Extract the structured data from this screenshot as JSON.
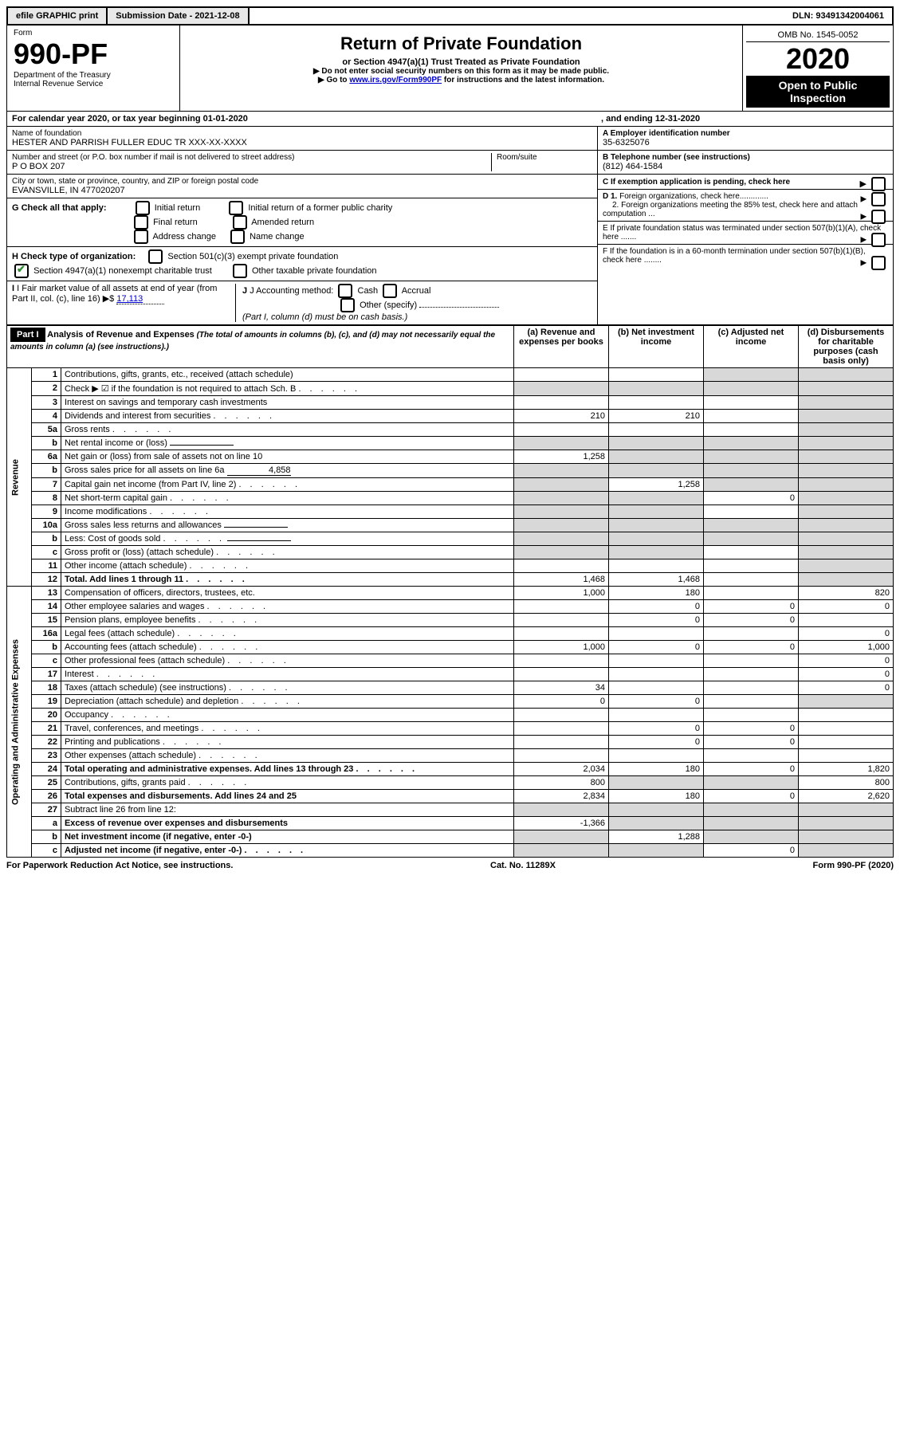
{
  "topbar": {
    "efile": "efile GRAPHIC print",
    "submission": "Submission Date - 2021-12-08",
    "dln": "DLN: 93491342004061"
  },
  "header": {
    "form_label": "Form",
    "form_no": "990-PF",
    "dept1": "Department of the Treasury",
    "dept2": "Internal Revenue Service",
    "title": "Return of Private Foundation",
    "subtitle": "or Section 4947(a)(1) Trust Treated as Private Foundation",
    "note1": "▶ Do not enter social security numbers on this form as it may be made public.",
    "note2_pre": "▶ Go to ",
    "note2_link": "www.irs.gov/Form990PF",
    "note2_post": " for instructions and the latest information.",
    "omb": "OMB No. 1545-0052",
    "year": "2020",
    "inspection": "Open to Public Inspection"
  },
  "period": {
    "label": "For calendar year 2020, or tax year beginning 01-01-2020",
    "ending": ", and ending 12-31-2020"
  },
  "info": {
    "name_label": "Name of foundation",
    "name": "HESTER AND PARRISH FULLER EDUC TR XXX-XX-XXXX",
    "addr_label": "Number and street (or P.O. box number if mail is not delivered to street address)",
    "addr": "P O BOX 207",
    "room_label": "Room/suite",
    "city_label": "City or town, state or province, country, and ZIP or foreign postal code",
    "city": "EVANSVILLE, IN  477020207",
    "a_label": "A Employer identification number",
    "a_val": "35-6325076",
    "b_label": "B Telephone number (see instructions)",
    "b_val": "(812) 464-1584",
    "c_label": "C If exemption application is pending, check here",
    "d1": "D 1. Foreign organizations, check here.............",
    "d2": "2. Foreign organizations meeting the 85% test, check here and attach computation ...",
    "e": "E  If private foundation status was terminated under section 507(b)(1)(A), check here .......",
    "f": "F  If the foundation is in a 60-month termination under section 507(b)(1)(B), check here ........"
  },
  "g": {
    "label": "G Check all that apply:",
    "initial": "Initial return",
    "initial_former": "Initial return of a former public charity",
    "final": "Final return",
    "amended": "Amended return",
    "address": "Address change",
    "name": "Name change"
  },
  "h": {
    "label": "H Check type of organization:",
    "s501": "Section 501(c)(3) exempt private foundation",
    "s4947": "Section 4947(a)(1) nonexempt charitable trust",
    "other": "Other taxable private foundation"
  },
  "i": {
    "label": "I Fair market value of all assets at end of year (from Part II, col. (c), line 16)",
    "arrow": "▶$",
    "val": "17,113"
  },
  "j": {
    "label": "J Accounting method:",
    "cash": "Cash",
    "accrual": "Accrual",
    "other": "Other (specify)",
    "note": "(Part I, column (d) must be on cash basis.)"
  },
  "part1": {
    "label": "Part I",
    "title": "Analysis of Revenue and Expenses",
    "title_note": " (The total of amounts in columns (b), (c), and (d) may not necessarily equal the amounts in column (a) (see instructions).)",
    "col_a": "(a)  Revenue and expenses per books",
    "col_b": "(b)  Net investment income",
    "col_c": "(c)  Adjusted net income",
    "col_d": "(d)  Disbursements for charitable purposes (cash basis only)"
  },
  "sections": {
    "revenue": "Revenue",
    "opex": "Operating and Administrative Expenses"
  },
  "lines": [
    {
      "no": "1",
      "desc": "Contributions, gifts, grants, etc., received (attach schedule)",
      "a": "",
      "b": "",
      "c": "shade",
      "d": "shade"
    },
    {
      "no": "2",
      "desc": "Check ▶ ☑ if the foundation is not required to attach Sch. B",
      "dots": true,
      "a": "shade",
      "b": "shade",
      "c": "shade",
      "d": "shade"
    },
    {
      "no": "3",
      "desc": "Interest on savings and temporary cash investments",
      "a": "",
      "b": "",
      "c": "",
      "d": "shade"
    },
    {
      "no": "4",
      "desc": "Dividends and interest from securities",
      "dots": true,
      "a": "210",
      "b": "210",
      "c": "",
      "d": "shade"
    },
    {
      "no": "5a",
      "desc": "Gross rents",
      "dots": true,
      "a": "",
      "b": "",
      "c": "",
      "d": "shade"
    },
    {
      "no": "b",
      "desc": "Net rental income or (loss)",
      "inline": "",
      "a": "shade",
      "b": "shade",
      "c": "shade",
      "d": "shade"
    },
    {
      "no": "6a",
      "desc": "Net gain or (loss) from sale of assets not on line 10",
      "a": "1,258",
      "b": "shade",
      "c": "shade",
      "d": "shade"
    },
    {
      "no": "b",
      "desc": "Gross sales price for all assets on line 6a",
      "inline": "4,858",
      "a": "shade",
      "b": "shade",
      "c": "shade",
      "d": "shade"
    },
    {
      "no": "7",
      "desc": "Capital gain net income (from Part IV, line 2)",
      "dots": true,
      "a": "shade",
      "b": "1,258",
      "c": "shade",
      "d": "shade"
    },
    {
      "no": "8",
      "desc": "Net short-term capital gain",
      "dots": true,
      "a": "shade",
      "b": "shade",
      "c": "0",
      "d": "shade"
    },
    {
      "no": "9",
      "desc": "Income modifications",
      "dots": true,
      "a": "shade",
      "b": "shade",
      "c": "",
      "d": "shade"
    },
    {
      "no": "10a",
      "desc": "Gross sales less returns and allowances",
      "inline": "",
      "a": "shade",
      "b": "shade",
      "c": "shade",
      "d": "shade"
    },
    {
      "no": "b",
      "desc": "Less: Cost of goods sold",
      "dots": true,
      "inline": "",
      "a": "shade",
      "b": "shade",
      "c": "shade",
      "d": "shade"
    },
    {
      "no": "c",
      "desc": "Gross profit or (loss) (attach schedule)",
      "dots": true,
      "a": "shade",
      "b": "shade",
      "c": "",
      "d": "shade"
    },
    {
      "no": "11",
      "desc": "Other income (attach schedule)",
      "dots": true,
      "a": "",
      "b": "",
      "c": "",
      "d": "shade"
    },
    {
      "no": "12",
      "desc": "Total. Add lines 1 through 11",
      "dots": true,
      "bold": true,
      "a": "1,468",
      "b": "1,468",
      "c": "",
      "d": "shade"
    }
  ],
  "opex_lines": [
    {
      "no": "13",
      "desc": "Compensation of officers, directors, trustees, etc.",
      "a": "1,000",
      "b": "180",
      "c": "",
      "d": "820"
    },
    {
      "no": "14",
      "desc": "Other employee salaries and wages",
      "dots": true,
      "a": "",
      "b": "0",
      "c": "0",
      "d": "0"
    },
    {
      "no": "15",
      "desc": "Pension plans, employee benefits",
      "dots": true,
      "a": "",
      "b": "0",
      "c": "0",
      "d": ""
    },
    {
      "no": "16a",
      "desc": "Legal fees (attach schedule)",
      "dots": true,
      "a": "",
      "b": "",
      "c": "",
      "d": "0"
    },
    {
      "no": "b",
      "desc": "Accounting fees (attach schedule)",
      "dots": true,
      "a": "1,000",
      "b": "0",
      "c": "0",
      "d": "1,000"
    },
    {
      "no": "c",
      "desc": "Other professional fees (attach schedule)",
      "dots": true,
      "a": "",
      "b": "",
      "c": "",
      "d": "0"
    },
    {
      "no": "17",
      "desc": "Interest",
      "dots": true,
      "a": "",
      "b": "",
      "c": "",
      "d": "0"
    },
    {
      "no": "18",
      "desc": "Taxes (attach schedule) (see instructions)",
      "dots": true,
      "a": "34",
      "b": "",
      "c": "",
      "d": "0"
    },
    {
      "no": "19",
      "desc": "Depreciation (attach schedule) and depletion",
      "dots": true,
      "a": "0",
      "b": "0",
      "c": "",
      "d": "shade"
    },
    {
      "no": "20",
      "desc": "Occupancy",
      "dots": true,
      "a": "",
      "b": "",
      "c": "",
      "d": ""
    },
    {
      "no": "21",
      "desc": "Travel, conferences, and meetings",
      "dots": true,
      "a": "",
      "b": "0",
      "c": "0",
      "d": ""
    },
    {
      "no": "22",
      "desc": "Printing and publications",
      "dots": true,
      "a": "",
      "b": "0",
      "c": "0",
      "d": ""
    },
    {
      "no": "23",
      "desc": "Other expenses (attach schedule)",
      "dots": true,
      "a": "",
      "b": "",
      "c": "",
      "d": ""
    },
    {
      "no": "24",
      "desc": "Total operating and administrative expenses. Add lines 13 through 23",
      "dots": true,
      "bold": true,
      "a": "2,034",
      "b": "180",
      "c": "0",
      "d": "1,820"
    },
    {
      "no": "25",
      "desc": "Contributions, gifts, grants paid",
      "dots": true,
      "a": "800",
      "b": "shade",
      "c": "shade",
      "d": "800"
    },
    {
      "no": "26",
      "desc": "Total expenses and disbursements. Add lines 24 and 25",
      "bold": true,
      "a": "2,834",
      "b": "180",
      "c": "0",
      "d": "2,620"
    },
    {
      "no": "27",
      "desc": "Subtract line 26 from line 12:",
      "a": "shade",
      "b": "shade",
      "c": "shade",
      "d": "shade"
    },
    {
      "no": "a",
      "desc": "Excess of revenue over expenses and disbursements",
      "bold": true,
      "a": "-1,366",
      "b": "shade",
      "c": "shade",
      "d": "shade"
    },
    {
      "no": "b",
      "desc": "Net investment income (if negative, enter -0-)",
      "bold": true,
      "a": "shade",
      "b": "1,288",
      "c": "shade",
      "d": "shade"
    },
    {
      "no": "c",
      "desc": "Adjusted net income (if negative, enter -0-)",
      "dots": true,
      "bold": true,
      "a": "shade",
      "b": "shade",
      "c": "0",
      "d": "shade"
    }
  ],
  "footer": {
    "left": "For Paperwork Reduction Act Notice, see instructions.",
    "center": "Cat. No. 11289X",
    "right": "Form 990-PF (2020)"
  }
}
